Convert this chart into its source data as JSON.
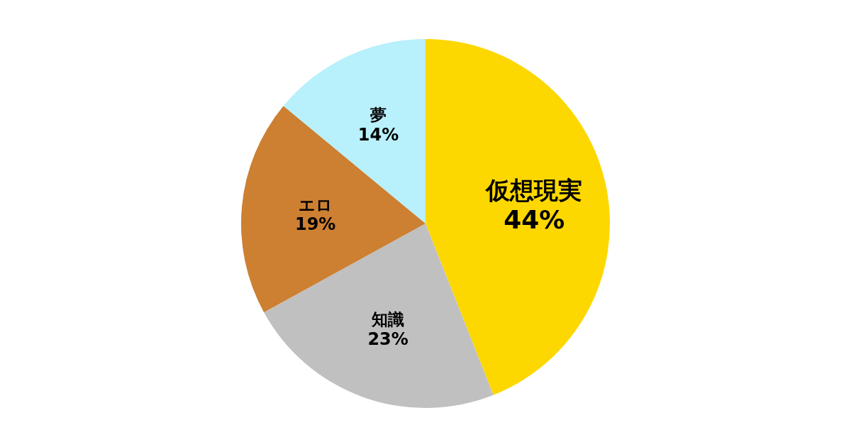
{
  "chart_data": {
    "type": "pie",
    "categories": [
      "仮想現実",
      "知識",
      "エロ",
      "夢"
    ],
    "values": [
      44,
      23,
      19,
      14
    ],
    "colors": [
      "#fdd700",
      "#c0c0c0",
      "#cd7f32",
      "#b8f0fc"
    ],
    "value_labels": [
      "44%",
      "23%",
      "19%",
      "14%"
    ]
  }
}
